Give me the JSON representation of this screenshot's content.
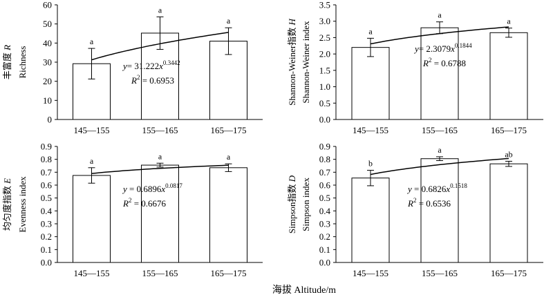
{
  "x_title": "海拔 Altitude/m",
  "chart_data": [
    {
      "type": "bar",
      "categories": [
        "145—155",
        "155—165",
        "165—175"
      ],
      "values": [
        29.2,
        45.2,
        41.0
      ],
      "errors": [
        8.0,
        8.5,
        7.0
      ],
      "significance": [
        "a",
        "a",
        "a"
      ],
      "ylim": [
        0,
        60
      ],
      "ystep": 10,
      "ydecimals": 0,
      "ylabel_line1": "丰富度 R",
      "ylabel_line1_italic": "R",
      "ylabel_line2": "Richness",
      "fit": {
        "a": 31.222,
        "b": 0.3442
      },
      "equation": {
        "prefix": "y",
        "eq": "= 31.222",
        "xvar": "x",
        "exponent": "0.3442",
        "r2_label": "R",
        "r2_sup": "2",
        "r2_value": " =  0.6953"
      }
    },
    {
      "type": "bar",
      "categories": [
        "145—155",
        "155—165",
        "165—175"
      ],
      "values": [
        2.2,
        2.8,
        2.65
      ],
      "errors": [
        0.28,
        0.18,
        0.14
      ],
      "significance": [
        "a",
        "a",
        "a"
      ],
      "ylim": [
        0,
        3.5
      ],
      "ystep": 0.5,
      "ydecimals": 1,
      "ylabel_line1": "Shannon-Weiner指数 H",
      "ylabel_line1_italic": "H",
      "ylabel_line2": "Shannon-Weiner index",
      "fit": {
        "a": 2.3079,
        "b": 0.1844
      },
      "equation": {
        "prefix": "y",
        "eq": "= 2.3079",
        "xvar": "x",
        "exponent": "0.1844",
        "r2_label": "R",
        "r2_sup": "2",
        "r2_value": " = 0.6788"
      }
    },
    {
      "type": "bar",
      "categories": [
        "145—155",
        "155—165",
        "165—175"
      ],
      "values": [
        0.675,
        0.755,
        0.735
      ],
      "errors": [
        0.06,
        0.015,
        0.03
      ],
      "significance": [
        "a",
        "a",
        "a"
      ],
      "ylim": [
        0,
        0.9
      ],
      "ystep": 0.1,
      "ydecimals": 1,
      "ylabel_line1": "均匀度指数 E",
      "ylabel_line1_italic": "E",
      "ylabel_line2": "Evenness index",
      "fit": {
        "a": 0.6896,
        "b": 0.0817
      },
      "equation": {
        "prefix": "y",
        "eq": " = 0.6896",
        "xvar": "x",
        "exponent": "0.0817",
        "r2_label": "R",
        "r2_sup": "2",
        "r2_value": " = 0.6676"
      }
    },
    {
      "type": "bar",
      "categories": [
        "145—155",
        "155—165",
        "165—175"
      ],
      "values": [
        0.655,
        0.805,
        0.765
      ],
      "errors": [
        0.06,
        0.015,
        0.02
      ],
      "significance": [
        "b",
        "a",
        "ab"
      ],
      "ylim": [
        0,
        0.9
      ],
      "ystep": 0.1,
      "ydecimals": 1,
      "ylabel_line1": "Simpson指数 D",
      "ylabel_line1_italic": "D",
      "ylabel_line2": "Simpson index",
      "fit": {
        "a": 0.6826,
        "b": 0.1518
      },
      "equation": {
        "prefix": "y",
        "eq": " = 0.6826",
        "xvar": "x",
        "exponent": "0.1518",
        "r2_label": "R",
        "r2_sup": "2",
        "r2_value": " = 0.6536"
      }
    }
  ]
}
